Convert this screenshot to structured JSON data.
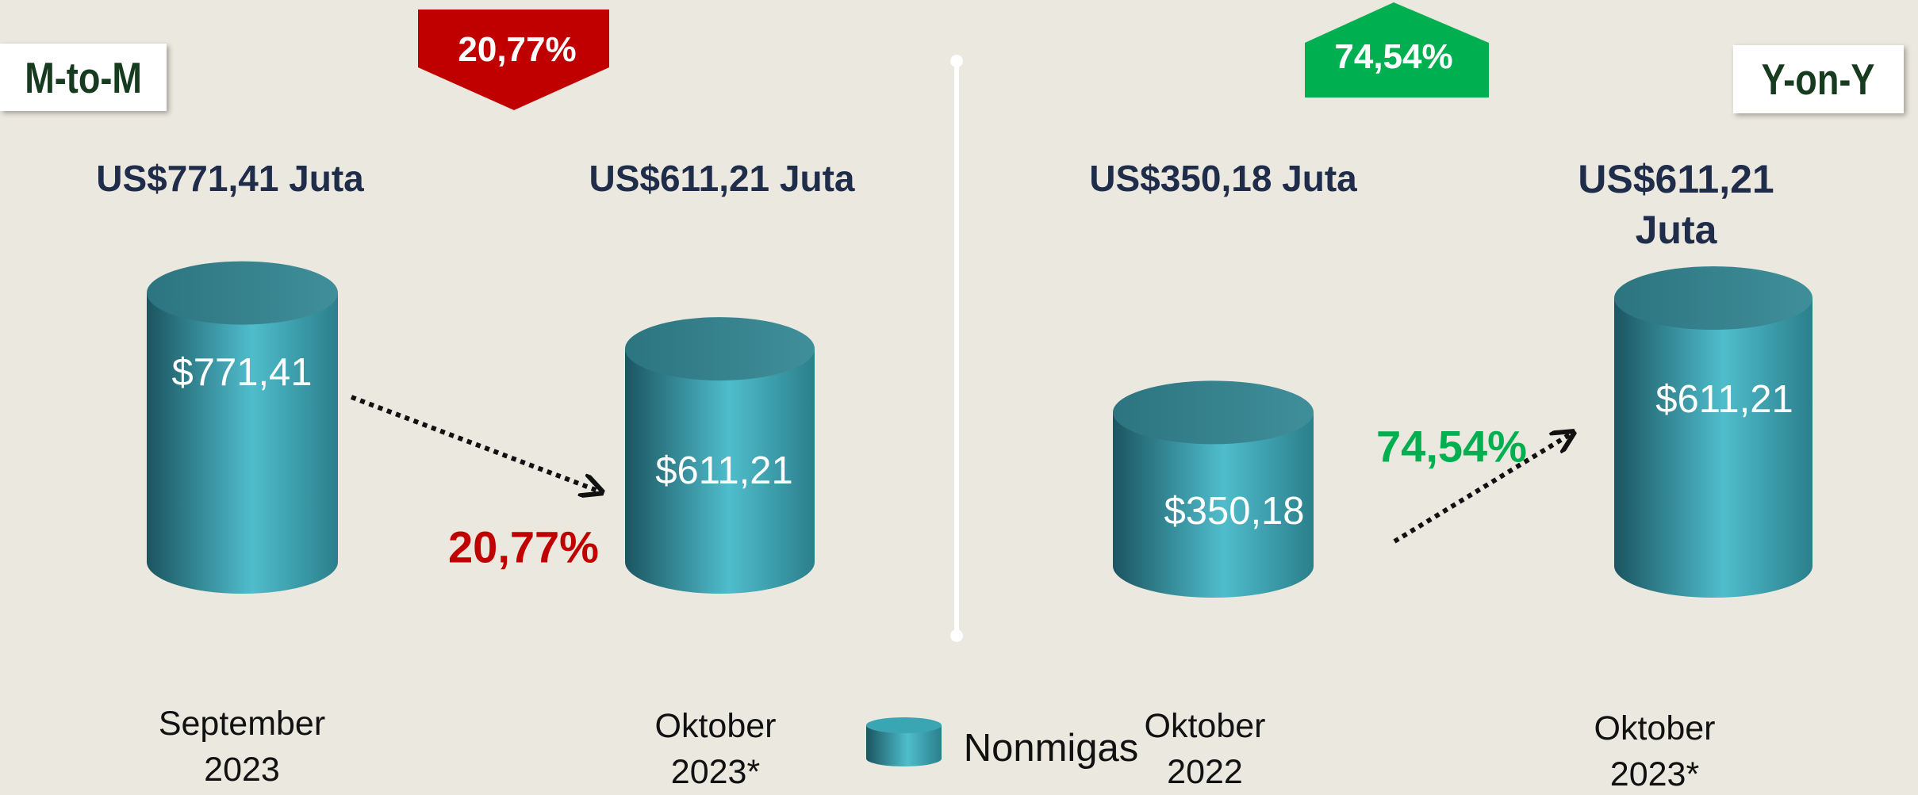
{
  "panels": [
    {
      "mode": "M-to-M",
      "change": "20,77%",
      "direction": "down",
      "bars": [
        {
          "heading": "US$771,41 Juta",
          "value": 771.41,
          "label": "$771,41",
          "period": "September 2023"
        },
        {
          "heading": "US$611,21 Juta",
          "value": 611.21,
          "label": "$611,21",
          "period": "Oktober 2023*"
        }
      ]
    },
    {
      "mode": "Y-on-Y",
      "change": "74,54%",
      "direction": "up",
      "bars": [
        {
          "heading": "US$350,18 Juta",
          "value": 350.18,
          "label": "$350,18",
          "period": "Oktober 2022"
        },
        {
          "heading": "US$611,21 Juta",
          "value": 611.21,
          "label": "$611,21",
          "period": "Oktober 2023*"
        }
      ]
    }
  ],
  "legend": "Nonmigas",
  "color": "#3aa6b4"
}
